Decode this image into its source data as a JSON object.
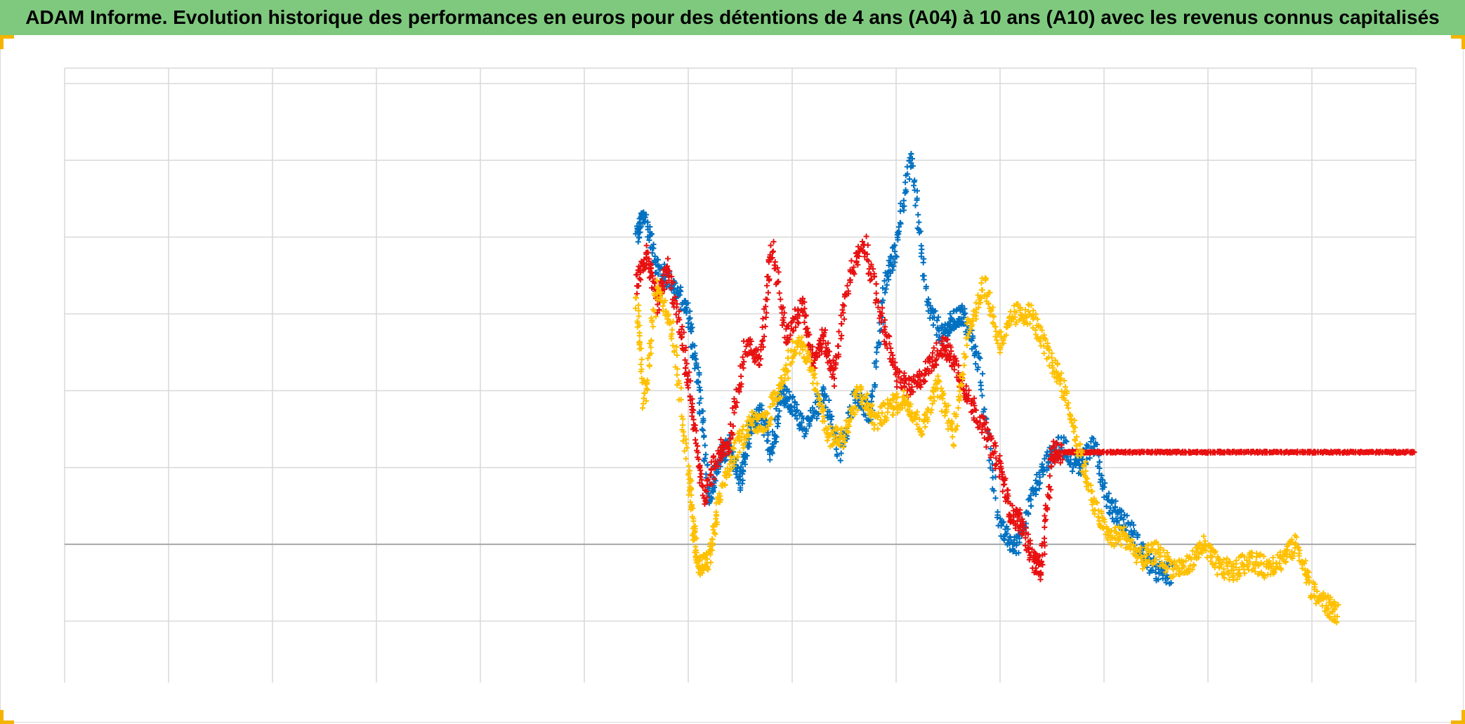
{
  "title": "ADAM Informe. Evolution historique des performances en euros pour des détentions de 4 ans (A04) à 10 ans (A10) avec les revenus connus capitalisés",
  "colors": {
    "title_bg": "#7fc97f",
    "grid": "#d9d9d9",
    "zero_line": "#a6a6a6",
    "corner_marks": "#f4b400"
  },
  "chart_data": {
    "type": "scatter",
    "marker": "plus",
    "title": "ADAM Informe. Evolution historique des performances en euros pour des détentions de 4 ans (A04) à 10 ans (A10) avec les revenus connus capitalisés",
    "xlabel": "",
    "ylabel": "",
    "x_tick_labels": [],
    "y_tick_labels": [],
    "xlim": [
      0,
      13
    ],
    "ylim": [
      -1.8,
      6.2
    ],
    "grid": true,
    "legend": "none",
    "series": [
      {
        "color": "#0070c0",
        "x": [
          5.5,
          5.58,
          5.7,
          5.85,
          6.0,
          6.1,
          6.2,
          6.3,
          6.4,
          6.5,
          6.6,
          6.7,
          6.8,
          6.9,
          7.0,
          7.15,
          7.3,
          7.45,
          7.6,
          7.75,
          7.9,
          8.0,
          8.15,
          8.3,
          8.45,
          8.55,
          8.65,
          8.8,
          9.0,
          9.15,
          9.3,
          9.45,
          9.6,
          9.75,
          9.9,
          10.05,
          10.2,
          10.35,
          10.5,
          10.65
        ],
        "y": [
          4.0,
          4.3,
          3.6,
          3.4,
          3.0,
          2.1,
          0.6,
          1.1,
          1.3,
          0.8,
          1.5,
          1.7,
          1.2,
          2.0,
          1.8,
          1.5,
          2.0,
          1.2,
          1.9,
          1.7,
          3.4,
          3.9,
          5.1,
          3.1,
          2.7,
          2.9,
          3.0,
          2.3,
          0.2,
          -0.05,
          0.6,
          1.1,
          1.3,
          1.0,
          1.3,
          0.5,
          0.3,
          -0.05,
          -0.35,
          -0.4
        ]
      },
      {
        "color": "#e81010",
        "x": [
          5.5,
          5.6,
          5.7,
          5.8,
          5.95,
          6.05,
          6.15,
          6.3,
          6.4,
          6.55,
          6.7,
          6.8,
          6.95,
          7.1,
          7.2,
          7.3,
          7.4,
          7.55,
          7.7,
          7.85,
          8.0,
          8.15,
          8.3,
          8.45,
          8.55,
          8.7,
          8.85,
          9.0,
          9.1,
          9.2,
          9.32,
          9.4,
          9.5,
          9.6,
          9.8,
          10.0,
          10.2,
          10.4,
          10.6,
          10.8,
          11.0,
          11.2,
          11.4,
          11.6,
          11.8,
          12.0,
          12.2,
          12.4,
          12.6,
          12.8,
          13.0
        ],
        "y": [
          3.4,
          3.8,
          3.1,
          3.6,
          2.6,
          1.6,
          0.6,
          1.2,
          1.3,
          2.6,
          2.4,
          3.9,
          2.7,
          3.1,
          2.4,
          2.7,
          2.2,
          3.5,
          3.9,
          3.0,
          2.2,
          2.0,
          2.3,
          2.6,
          2.4,
          1.9,
          1.5,
          1.0,
          0.4,
          0.3,
          -0.2,
          -0.35,
          1.2,
          1.2,
          1.2,
          1.2,
          1.2,
          1.2,
          1.2,
          1.2,
          1.2,
          1.2,
          1.2,
          1.2,
          1.2,
          1.2,
          1.2,
          1.2,
          1.2,
          1.2,
          1.2
        ]
      },
      {
        "color": "#ffc000",
        "x": [
          5.5,
          5.58,
          5.7,
          5.85,
          6.0,
          6.05,
          6.1,
          6.2,
          6.3,
          6.45,
          6.6,
          6.75,
          6.9,
          7.05,
          7.2,
          7.35,
          7.5,
          7.65,
          7.8,
          7.95,
          8.1,
          8.25,
          8.4,
          8.55,
          8.7,
          8.85,
          9.0,
          9.15,
          9.3,
          9.45,
          9.6,
          9.75,
          9.9,
          10.05,
          10.2,
          10.35,
          10.5,
          10.65,
          10.8,
          10.95,
          11.1,
          11.25,
          11.4,
          11.55,
          11.7,
          11.85,
          12.0,
          12.15,
          12.25
        ],
        "y": [
          3.2,
          1.8,
          3.4,
          2.8,
          1.0,
          0.2,
          -0.3,
          -0.2,
          0.6,
          1.2,
          1.6,
          1.6,
          2.1,
          2.7,
          2.2,
          1.4,
          1.4,
          2.0,
          1.6,
          1.8,
          1.9,
          1.5,
          2.1,
          1.4,
          2.8,
          3.4,
          2.6,
          3.0,
          3.0,
          2.5,
          2.1,
          1.3,
          0.5,
          0.1,
          0.1,
          -0.2,
          -0.1,
          -0.3,
          -0.3,
          0.0,
          -0.3,
          -0.35,
          -0.2,
          -0.3,
          -0.2,
          0.0,
          -0.6,
          -0.8,
          -0.9
        ]
      }
    ]
  }
}
